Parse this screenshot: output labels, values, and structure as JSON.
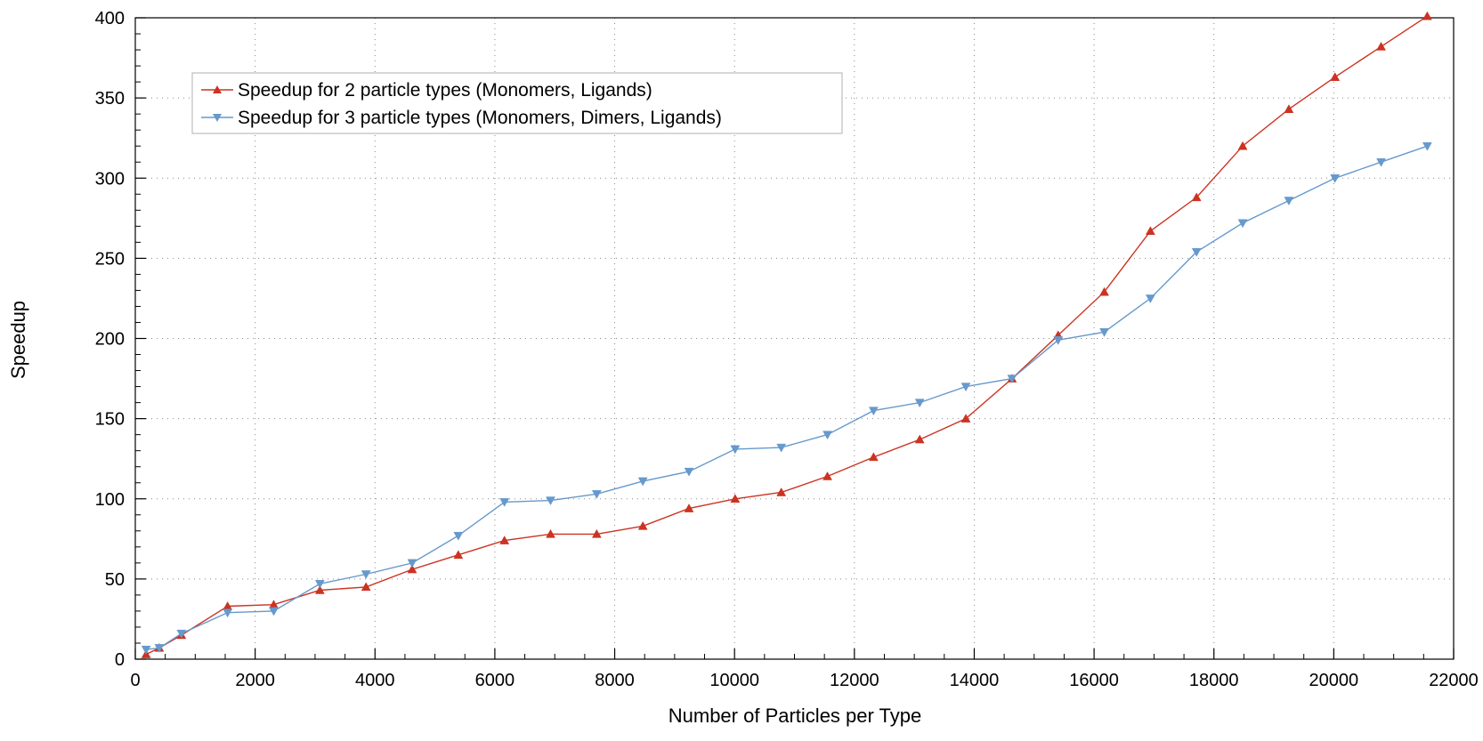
{
  "chart_data": {
    "type": "line",
    "title": "",
    "xlabel": "Number of Particles per Type",
    "ylabel": "Speedup",
    "xlim": [
      0,
      22000
    ],
    "ylim": [
      0,
      400
    ],
    "x_ticks": [
      0,
      2000,
      4000,
      6000,
      8000,
      10000,
      12000,
      14000,
      16000,
      18000,
      20000,
      22000
    ],
    "y_ticks": [
      0,
      50,
      100,
      150,
      200,
      250,
      300,
      350,
      400
    ],
    "grid": true,
    "legend_position": "top-left",
    "series": [
      {
        "name": "Speedup for 2 particle types (Monomers, Ligands)",
        "color": "#cc3322",
        "marker": "triangle-up",
        "x": [
          180,
          400,
          770,
          1540,
          2310,
          3080,
          3850,
          4620,
          5390,
          6160,
          6930,
          7700,
          8470,
          9240,
          10010,
          10780,
          11550,
          12320,
          13090,
          13860,
          14630,
          15400,
          16170,
          16940,
          17710,
          18480,
          19250,
          20020,
          20790,
          21560
        ],
        "values": [
          3,
          7,
          15,
          33,
          34,
          43,
          45,
          56,
          65,
          74,
          78,
          78,
          83,
          94,
          100,
          104,
          114,
          126,
          137,
          150,
          175,
          202,
          229,
          267,
          288,
          320,
          343,
          363,
          382,
          401
        ]
      },
      {
        "name": "Speedup for 3 particle types (Monomers, Dimers, Ligands)",
        "color": "#6699cc",
        "marker": "triangle-down",
        "x": [
          180,
          400,
          770,
          1540,
          2310,
          3080,
          3850,
          4620,
          5390,
          6160,
          6930,
          7700,
          8470,
          9240,
          10010,
          10780,
          11550,
          12320,
          13090,
          13860,
          14630,
          15400,
          16170,
          16940,
          17710,
          18480,
          19250,
          20020,
          20790,
          21560
        ],
        "values": [
          6,
          7,
          16,
          29,
          30,
          47,
          53,
          60,
          77,
          98,
          99,
          103,
          111,
          117,
          131,
          132,
          140,
          155,
          160,
          170,
          175,
          199,
          204,
          225,
          254,
          272,
          286,
          300,
          310,
          320
        ]
      }
    ]
  }
}
